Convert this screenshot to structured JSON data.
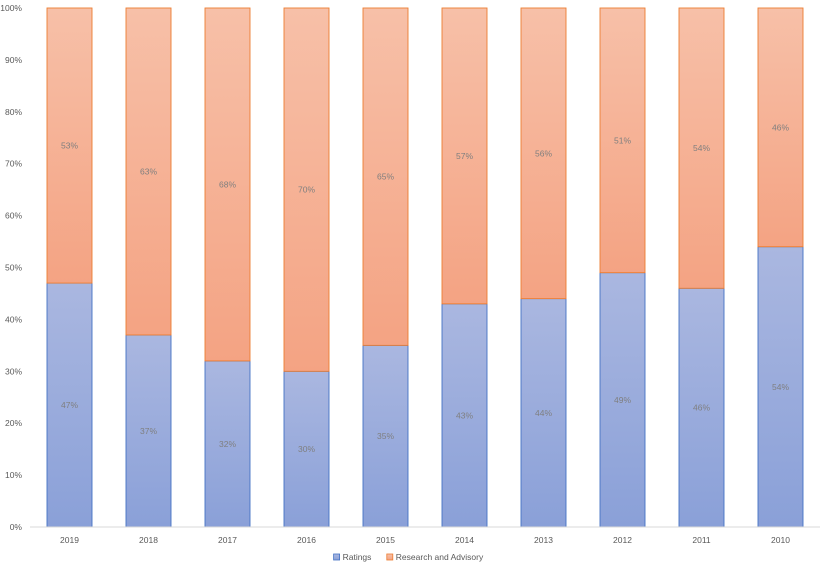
{
  "chart_data": {
    "type": "bar",
    "stacked": true,
    "percent_stacked": true,
    "categories": [
      "2019",
      "2018",
      "2017",
      "2016",
      "2015",
      "2014",
      "2013",
      "2012",
      "2011",
      "2010"
    ],
    "series": [
      {
        "name": "Ratings",
        "values": [
          47,
          37,
          32,
          30,
          35,
          43,
          44,
          49,
          46,
          54
        ],
        "labels": [
          "47%",
          "37%",
          "32%",
          "30%",
          "35%",
          "43%",
          "44%",
          "49%",
          "46%",
          "54%"
        ],
        "color_top": "#aab7e0",
        "color_bottom": "#8aa0d8",
        "stroke": "#4472c4"
      },
      {
        "name": "Research and Advisory",
        "values": [
          53,
          63,
          68,
          70,
          65,
          57,
          56,
          51,
          54,
          46
        ],
        "labels": [
          "53%",
          "63%",
          "68%",
          "70%",
          "65%",
          "57%",
          "56%",
          "51%",
          "54%",
          "46%"
        ],
        "color_top": "#f7c0a8",
        "color_bottom": "#f4a383",
        "stroke": "#ed7d31"
      }
    ],
    "y_ticks": [
      "0%",
      "10%",
      "20%",
      "30%",
      "40%",
      "50%",
      "60%",
      "70%",
      "80%",
      "90%",
      "100%"
    ],
    "ylim": [
      0,
      100
    ],
    "grid": false,
    "legend_position": "bottom",
    "title": "",
    "xlabel": "",
    "ylabel": ""
  }
}
